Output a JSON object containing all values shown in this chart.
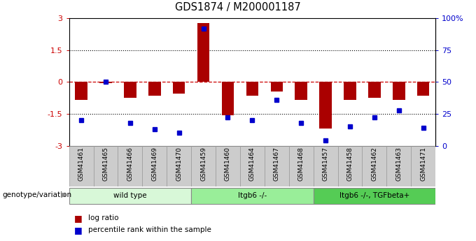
{
  "title": "GDS1874 / M200001187",
  "samples": [
    "GSM41461",
    "GSM41465",
    "GSM41466",
    "GSM41469",
    "GSM41470",
    "GSM41459",
    "GSM41460",
    "GSM41464",
    "GSM41467",
    "GSM41468",
    "GSM41457",
    "GSM41458",
    "GSM41462",
    "GSM41463",
    "GSM41471"
  ],
  "log_ratio": [
    -0.85,
    -0.05,
    -0.75,
    -0.65,
    -0.55,
    2.75,
    -1.55,
    -0.65,
    -0.45,
    -0.85,
    -2.2,
    -0.85,
    -0.75,
    -0.85,
    -0.65
  ],
  "percentile_rank": [
    20,
    50,
    18,
    13,
    10,
    92,
    22,
    20,
    36,
    18,
    4,
    15,
    22,
    28,
    14
  ],
  "groups": [
    {
      "label": "wild type",
      "start": 0,
      "end": 5,
      "color": "#d8f8d8"
    },
    {
      "label": "Itgb6 -/-",
      "start": 5,
      "end": 10,
      "color": "#99ee99"
    },
    {
      "label": "Itgb6 -/-, TGFbeta+",
      "start": 10,
      "end": 15,
      "color": "#55cc55"
    }
  ],
  "ylim": [
    -3,
    3
  ],
  "yticks_left": [
    -3,
    -1.5,
    0,
    1.5,
    3
  ],
  "yticks_right_vals": [
    -3,
    -1.5,
    0,
    1.5,
    3
  ],
  "yticks_right_labels": [
    "0",
    "25",
    "50",
    "75",
    "100%"
  ],
  "bar_color": "#aa0000",
  "dot_color": "#0000cc",
  "zero_line_color": "#cc0000",
  "dot_line_color": "#000000",
  "sample_box_color": "#cccccc",
  "legend_bar_label": "log ratio",
  "legend_dot_label": "percentile rank within the sample",
  "genotype_label": "genotype/variation"
}
